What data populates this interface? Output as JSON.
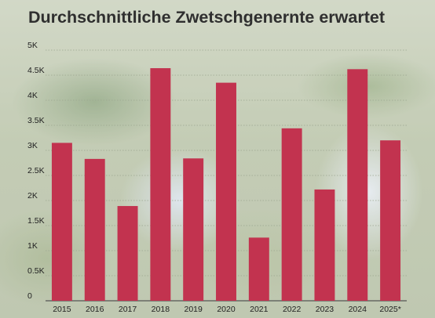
{
  "title": "Durchschnittliche Zwetschgenernte erwartet",
  "colors": {
    "bar": "#c2334f",
    "grid": "#9aa58e",
    "axis": "#555555"
  },
  "chart_data": {
    "type": "bar",
    "title": "Durchschnittliche Zwetschgenernte erwartet",
    "xlabel": "",
    "ylabel": "",
    "categories": [
      "2015",
      "2016",
      "2017",
      "2018",
      "2019",
      "2020",
      "2021",
      "2022",
      "2023",
      "2024",
      "2025*"
    ],
    "values": [
      3150,
      2830,
      1890,
      4640,
      2840,
      4350,
      1260,
      3440,
      2220,
      4620,
      3200
    ],
    "ylim": [
      0,
      5000
    ],
    "yticks": [
      0,
      500,
      1000,
      1500,
      2000,
      2500,
      3000,
      3500,
      4000,
      4500,
      5000
    ],
    "ytick_labels": [
      "0",
      "0.5K",
      "1K",
      "1.5K",
      "2K",
      "2.5K",
      "3K",
      "3.5K",
      "4K",
      "4.5K",
      "5K"
    ],
    "grid": true,
    "legend": "none"
  }
}
